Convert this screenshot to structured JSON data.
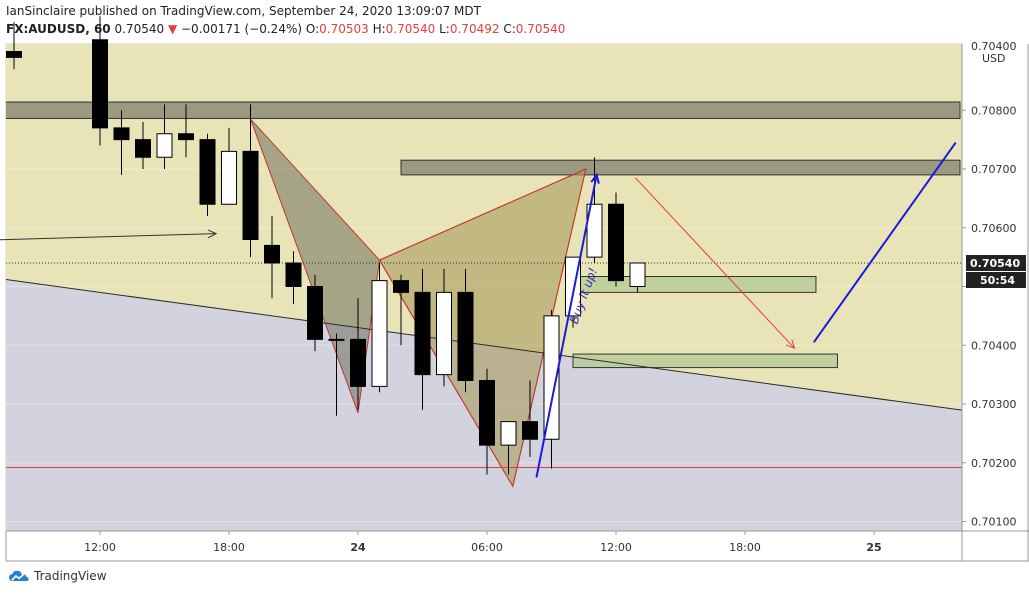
{
  "header": {
    "published": "IanSinclaire published on TradingView.com, September 24, 2020 13:09:07 MDT",
    "symbol": "FX:AUDUSD, 60",
    "last": "0.70540",
    "change_arrow": "▼",
    "change": "−0.00171 (−0.24%)",
    "o_label": "O:",
    "o_value": "0.70503",
    "h_label": "H:",
    "h_value": "0.70540",
    "l_label": "L:",
    "l_value": "0.70492",
    "c_label": "C:",
    "c_value": "0.70540"
  },
  "branding": {
    "name": "TradingView",
    "icon": "tradingview-cloud-icon"
  },
  "chart_data": {
    "type": "candlestick",
    "currency": "USD",
    "y_ticks": [
      0.701,
      0.702,
      0.703,
      0.704,
      0.705,
      0.706,
      0.707,
      0.708
    ],
    "y_tick_labels": [
      "0.70100",
      "0.70200",
      "0.70300",
      "0.70400",
      "",
      "0.70600",
      "0.70700",
      "0.70800"
    ],
    "top_partial_label": "0.70400",
    "x_tick_labels": [
      {
        "hour": 12,
        "label": "12:00",
        "bold": false
      },
      {
        "hour": 18,
        "label": "18:00",
        "bold": false
      },
      {
        "hour": 24,
        "label": "24",
        "bold": true
      },
      {
        "hour": 30,
        "label": "06:00",
        "bold": false
      },
      {
        "hour": 36,
        "label": "12:00",
        "bold": false
      },
      {
        "hour": 42,
        "label": "18:00",
        "bold": false
      },
      {
        "hour": 48,
        "label": "25",
        "bold": true
      }
    ],
    "price_label": "0.70540",
    "countdown_label": "50:54",
    "colors": {
      "up": "#ffffff",
      "down": "#000000",
      "fill_top": "#e8e4b8",
      "fill_bottom": "#d2d3df"
    },
    "candles": [
      {
        "h": 8,
        "o": 0.709,
        "hi": 0.7095,
        "l": 0.7087,
        "c": 0.7089
      },
      {
        "h": 12,
        "o": 0.7092,
        "hi": 0.7096,
        "l": 0.7074,
        "c": 0.7077
      },
      {
        "h": 13,
        "o": 0.7077,
        "hi": 0.708,
        "l": 0.7069,
        "c": 0.7075
      },
      {
        "h": 14,
        "o": 0.7075,
        "hi": 0.7078,
        "l": 0.707,
        "c": 0.7072
      },
      {
        "h": 15,
        "o": 0.7072,
        "hi": 0.7081,
        "l": 0.707,
        "c": 0.7076
      },
      {
        "h": 16,
        "o": 0.7076,
        "hi": 0.7081,
        "l": 0.7072,
        "c": 0.7075
      },
      {
        "h": 17,
        "o": 0.7075,
        "hi": 0.7076,
        "l": 0.7062,
        "c": 0.7064
      },
      {
        "h": 18,
        "o": 0.7064,
        "hi": 0.7077,
        "l": 0.7064,
        "c": 0.7073
      },
      {
        "h": 19,
        "o": 0.7073,
        "hi": 0.7081,
        "l": 0.7055,
        "c": 0.7058
      },
      {
        "h": 20,
        "o": 0.7057,
        "hi": 0.7062,
        "l": 0.7048,
        "c": 0.7054
      },
      {
        "h": 21,
        "o": 0.7054,
        "hi": 0.7056,
        "l": 0.7047,
        "c": 0.705
      },
      {
        "h": 22,
        "o": 0.705,
        "hi": 0.7052,
        "l": 0.7039,
        "c": 0.7041
      },
      {
        "h": 23,
        "o": 0.7041,
        "hi": 0.7042,
        "l": 0.7028,
        "c": 0.7041
      },
      {
        "h": 24,
        "o": 0.7041,
        "hi": 0.7048,
        "l": 0.7029,
        "c": 0.7033
      },
      {
        "h": 25,
        "o": 0.7033,
        "hi": 0.7054,
        "l": 0.7032,
        "c": 0.7051
      },
      {
        "h": 26,
        "o": 0.7051,
        "hi": 0.7052,
        "l": 0.704,
        "c": 0.7049
      },
      {
        "h": 27,
        "o": 0.7049,
        "hi": 0.7053,
        "l": 0.7029,
        "c": 0.7035
      },
      {
        "h": 28,
        "o": 0.7035,
        "hi": 0.7053,
        "l": 0.7033,
        "c": 0.7049
      },
      {
        "h": 29,
        "o": 0.7049,
        "hi": 0.7053,
        "l": 0.7032,
        "c": 0.7034
      },
      {
        "h": 30,
        "o": 0.7034,
        "hi": 0.7036,
        "l": 0.7018,
        "c": 0.7023
      },
      {
        "h": 31,
        "o": 0.7023,
        "hi": 0.7027,
        "l": 0.7018,
        "c": 0.7027
      },
      {
        "h": 32,
        "o": 0.7027,
        "hi": 0.7034,
        "l": 0.7021,
        "c": 0.7024
      },
      {
        "h": 33,
        "o": 0.7024,
        "hi": 0.7046,
        "l": 0.7019,
        "c": 0.7045
      },
      {
        "h": 34,
        "o": 0.7045,
        "hi": 0.7055,
        "l": 0.7043,
        "c": 0.7055
      },
      {
        "h": 35,
        "o": 0.7055,
        "hi": 0.7072,
        "l": 0.7054,
        "c": 0.7064
      },
      {
        "h": 36,
        "o": 0.7064,
        "hi": 0.7066,
        "l": 0.705,
        "c": 0.7051
      },
      {
        "h": 37,
        "o": 0.705,
        "hi": 0.7054,
        "l": 0.7049,
        "c": 0.7054
      }
    ],
    "zones": [
      {
        "h1": 3,
        "h2": 52,
        "top": 0.70814,
        "bottom": 0.70786,
        "color": "#8d8c76"
      },
      {
        "h1": 26,
        "h2": 52,
        "top": 0.70715,
        "bottom": 0.7069,
        "color": "#8d8c76"
      },
      {
        "h1": 34.3,
        "h2": 45.3,
        "top": 0.70517,
        "bottom": 0.7049,
        "color": "#b7cc96"
      },
      {
        "h1": 34.0,
        "h2": 46.3,
        "top": 0.70385,
        "bottom": 0.70362,
        "color": "#b7cc96"
      }
    ],
    "harmonic": [
      {
        "h": 19.0,
        "p": 0.70785
      },
      {
        "h": 24.0,
        "p": 0.70285
      },
      {
        "h": 25.0,
        "p": 0.70545
      },
      {
        "h": 31.2,
        "p": 0.7016
      },
      {
        "h": 34.6,
        "p": 0.707
      }
    ],
    "trendline": {
      "h1": 3,
      "p1": 0.70535,
      "h2": 52,
      "p2": 0.7029
    },
    "support_line": {
      "price": 0.70192
    },
    "current_price": 0.7054,
    "projection_lines": [
      {
        "h1": 3,
        "p1": 0.70575,
        "h2": 17.4,
        "p2": 0.7059,
        "color": "#333333",
        "arrow": true
      },
      {
        "h1": 32.3,
        "p1": 0.70175,
        "h2": 35.1,
        "p2": 0.7069,
        "color": "#1a1ad8",
        "arrow": true
      },
      {
        "h1": 36.9,
        "p1": 0.70685,
        "h2": 44.3,
        "p2": 0.70395,
        "color": "#e53935",
        "arrow": true
      },
      {
        "h1": 45.2,
        "p1": 0.70405,
        "h2": 51.8,
        "p2": 0.70745,
        "color": "#1a1ad8",
        "arrow": false
      }
    ],
    "annotations": [
      {
        "text": "Buy it up!",
        "h": 34.2,
        "p": 0.70435,
        "color": "#3a2ca8"
      }
    ]
  }
}
